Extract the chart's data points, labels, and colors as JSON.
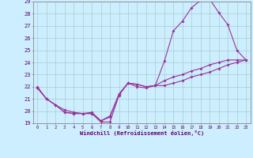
{
  "xlabel": "Windchill (Refroidissement éolien,°C)",
  "bg_color": "#cceeff",
  "grid_color": "#aacccc",
  "line_color": "#993399",
  "xlim": [
    -0.5,
    23.5
  ],
  "ylim": [
    19,
    29
  ],
  "xticks": [
    0,
    1,
    2,
    3,
    4,
    5,
    6,
    7,
    8,
    9,
    10,
    11,
    12,
    13,
    14,
    15,
    16,
    17,
    18,
    19,
    20,
    21,
    22,
    23
  ],
  "yticks": [
    19,
    20,
    21,
    22,
    23,
    24,
    25,
    26,
    27,
    28,
    29
  ],
  "line1_x": [
    0,
    1,
    2,
    3,
    4,
    5,
    6,
    7,
    8,
    9,
    10,
    11,
    12,
    13,
    14,
    15,
    16,
    17,
    18,
    19,
    20,
    21,
    22,
    23
  ],
  "line1_y": [
    22.0,
    21.0,
    20.5,
    19.9,
    19.8,
    19.8,
    19.8,
    19.1,
    19.1,
    21.3,
    22.3,
    22.0,
    21.9,
    22.1,
    24.1,
    26.6,
    27.4,
    28.5,
    29.1,
    29.2,
    28.1,
    27.1,
    25.0,
    24.2
  ],
  "line2_x": [
    0,
    1,
    2,
    3,
    4,
    5,
    6,
    7,
    8,
    9,
    10,
    11,
    12,
    13,
    14,
    15,
    16,
    17,
    18,
    19,
    20,
    21,
    22,
    23
  ],
  "line2_y": [
    21.9,
    21.0,
    20.5,
    19.9,
    19.8,
    19.8,
    19.8,
    19.2,
    19.5,
    21.4,
    22.3,
    22.2,
    22.0,
    22.1,
    22.1,
    22.3,
    22.5,
    22.8,
    23.0,
    23.2,
    23.5,
    23.8,
    24.0,
    24.2
  ],
  "line3_x": [
    0,
    1,
    2,
    3,
    4,
    5,
    6,
    7,
    8,
    9,
    10,
    11,
    12,
    13,
    14,
    15,
    16,
    17,
    18,
    19,
    20,
    21,
    22,
    23
  ],
  "line3_y": [
    21.9,
    21.0,
    20.5,
    20.1,
    19.9,
    19.8,
    19.9,
    19.2,
    19.6,
    21.4,
    22.3,
    22.2,
    22.0,
    22.1,
    22.5,
    22.8,
    23.0,
    23.3,
    23.5,
    23.8,
    24.0,
    24.2,
    24.2,
    24.2
  ],
  "tick_color": "#660066",
  "label_color": "#660066",
  "spine_color": "#888888"
}
